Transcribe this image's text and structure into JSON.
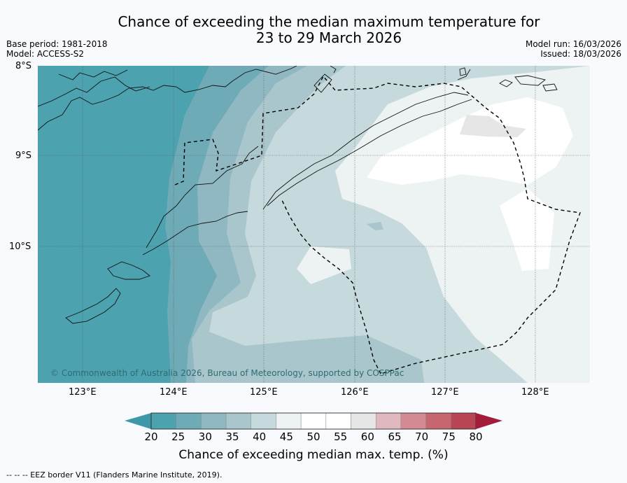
{
  "title_line1": "Chance of exceeding the median maximum temperature for",
  "title_line2": "23 to 29 March 2026",
  "base_period": "Base period: 1981-2018",
  "model": "Model: ACCESS-S2",
  "model_run": "Model run: 16/03/2026",
  "issued": "Issued: 18/03/2026",
  "lat_labels": [
    "8°S",
    "9°S",
    "10°S"
  ],
  "lon_labels": [
    "123°E",
    "124°E",
    "125°E",
    "126°E",
    "127°E",
    "128°E"
  ],
  "copyright": "© Commonwealth of Australia 2026, Bureau of Meteorology, supported by COSPPac",
  "colorbar": {
    "ticks": [
      "20",
      "25",
      "30",
      "35",
      "40",
      "45",
      "50",
      "55",
      "60",
      "65",
      "70",
      "75",
      "80"
    ],
    "colors": [
      "#4da2b0",
      "#6eabb7",
      "#8fb8c2",
      "#a8c6cb",
      "#c6d9dc",
      "#edf2f3",
      "#ffffff",
      "#ffffff",
      "#e6e6e6",
      "#e0b8bf",
      "#d48a92",
      "#c7666f",
      "#b84553"
    ],
    "under_color": "#3d99a8",
    "over_color": "#a31c3b",
    "label": "Chance of exceeding median max. temp. (%)"
  },
  "footer": "--  --  -- EEZ border V11 (Flanders Marine Institute, 2019)."
}
